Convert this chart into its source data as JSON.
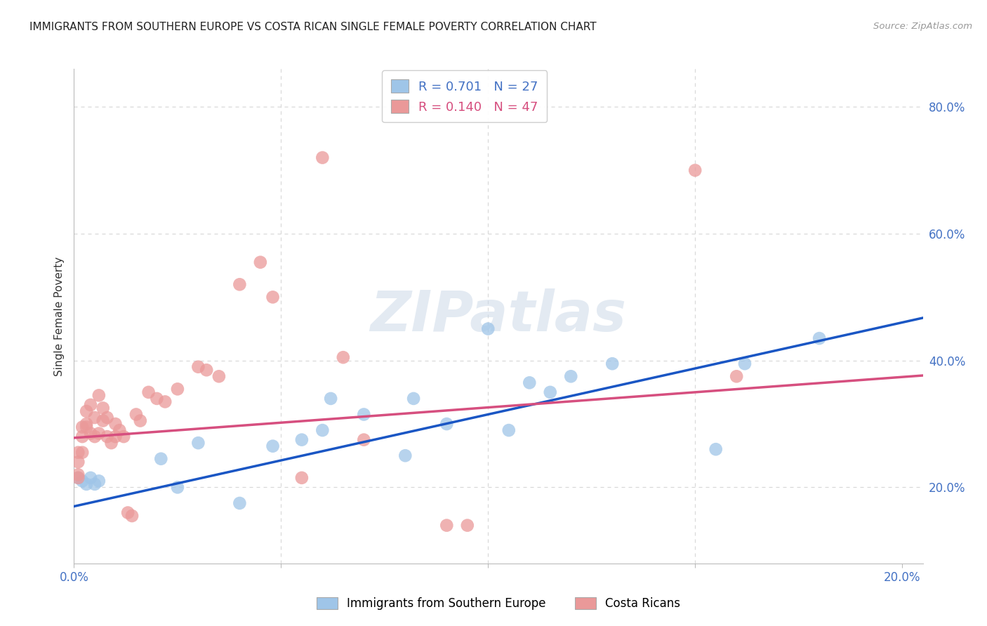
{
  "title": "IMMIGRANTS FROM SOUTHERN EUROPE VS COSTA RICAN SINGLE FEMALE POVERTY CORRELATION CHART",
  "source": "Source: ZipAtlas.com",
  "ylabel": "Single Female Poverty",
  "legend_blue_r": "R = 0.701",
  "legend_blue_n": "N = 27",
  "legend_pink_r": "R = 0.140",
  "legend_pink_n": "N = 47",
  "legend_blue_label": "Immigrants from Southern Europe",
  "legend_pink_label": "Costa Ricans",
  "watermark": "ZIPatlas",
  "blue_x": [
    0.001,
    0.002,
    0.003,
    0.004,
    0.005,
    0.006,
    0.021,
    0.025,
    0.03,
    0.04,
    0.048,
    0.055,
    0.06,
    0.062,
    0.07,
    0.08,
    0.082,
    0.09,
    0.1,
    0.105,
    0.11,
    0.115,
    0.12,
    0.13,
    0.155,
    0.162,
    0.18
  ],
  "blue_y": [
    0.215,
    0.21,
    0.205,
    0.215,
    0.205,
    0.21,
    0.245,
    0.2,
    0.27,
    0.175,
    0.265,
    0.275,
    0.29,
    0.34,
    0.315,
    0.25,
    0.34,
    0.3,
    0.45,
    0.29,
    0.365,
    0.35,
    0.375,
    0.395,
    0.26,
    0.395,
    0.435
  ],
  "pink_x": [
    0.001,
    0.001,
    0.001,
    0.001,
    0.002,
    0.002,
    0.002,
    0.003,
    0.003,
    0.003,
    0.004,
    0.004,
    0.005,
    0.005,
    0.006,
    0.006,
    0.007,
    0.007,
    0.008,
    0.008,
    0.009,
    0.01,
    0.01,
    0.011,
    0.012,
    0.013,
    0.014,
    0.015,
    0.016,
    0.018,
    0.02,
    0.022,
    0.025,
    0.03,
    0.032,
    0.035,
    0.04,
    0.045,
    0.048,
    0.055,
    0.06,
    0.065,
    0.07,
    0.09,
    0.095,
    0.15,
    0.16
  ],
  "pink_y": [
    0.255,
    0.24,
    0.22,
    0.215,
    0.295,
    0.28,
    0.255,
    0.32,
    0.3,
    0.295,
    0.285,
    0.33,
    0.31,
    0.28,
    0.285,
    0.345,
    0.325,
    0.305,
    0.31,
    0.28,
    0.27,
    0.3,
    0.28,
    0.29,
    0.28,
    0.16,
    0.155,
    0.315,
    0.305,
    0.35,
    0.34,
    0.335,
    0.355,
    0.39,
    0.385,
    0.375,
    0.52,
    0.555,
    0.5,
    0.215,
    0.72,
    0.405,
    0.275,
    0.14,
    0.14,
    0.7,
    0.375
  ],
  "blue_color": "#9fc5e8",
  "pink_color": "#ea9999",
  "blue_line_color": "#1a56c4",
  "pink_line_color": "#d64f7f",
  "title_color": "#222222",
  "source_color": "#999999",
  "axis_label_color": "#4472c4",
  "grid_color": "#d9d9d9",
  "watermark_color": "#ccd9e8",
  "bg_color": "#ffffff",
  "blue_line_intercept": 0.17,
  "blue_line_slope": 1.45,
  "pink_line_intercept": 0.278,
  "pink_line_slope": 0.48
}
